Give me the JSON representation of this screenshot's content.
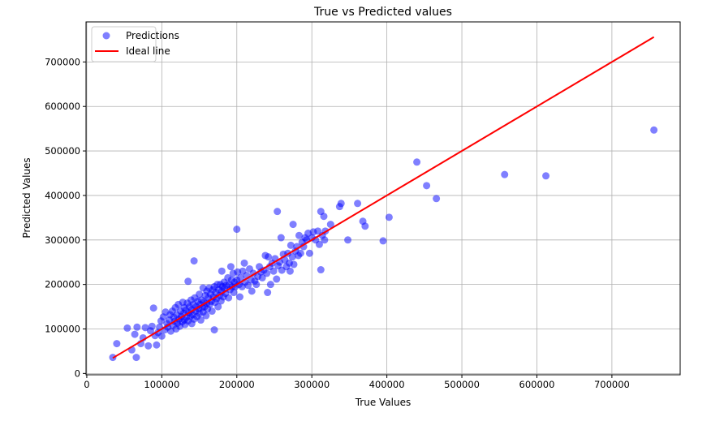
{
  "chart_data": {
    "type": "scatter",
    "title": "True vs Predicted values",
    "xlabel": "True Values",
    "ylabel": "Predicted Values",
    "xlim": [
      -1000,
      791000
    ],
    "ylim": [
      -3000,
      790000
    ],
    "xticks": [
      0,
      100000,
      200000,
      300000,
      400000,
      500000,
      600000,
      700000
    ],
    "yticks": [
      0,
      100000,
      200000,
      300000,
      400000,
      500000,
      600000,
      700000
    ],
    "xtick_labels": [
      "0",
      "100000",
      "200000",
      "300000",
      "400000",
      "500000",
      "600000",
      "700000"
    ],
    "ytick_labels": [
      "0",
      "100000",
      "200000",
      "300000",
      "400000",
      "500000",
      "600000",
      "700000"
    ],
    "grid": true,
    "legend_position": "top-left",
    "colors": {
      "points": "#0000ff",
      "ideal_line": "#ff0000"
    },
    "series": [
      {
        "name": "Predictions",
        "type": "scatter",
        "points": [
          [
            34700,
            36000
          ],
          [
            40000,
            67000
          ],
          [
            66000,
            36000
          ],
          [
            54000,
            102000
          ],
          [
            60000,
            53000
          ],
          [
            64000,
            88000
          ],
          [
            67000,
            104000
          ],
          [
            72000,
            67000
          ],
          [
            75000,
            80000
          ],
          [
            78000,
            103000
          ],
          [
            82000,
            62000
          ],
          [
            85000,
            96000
          ],
          [
            87000,
            106000
          ],
          [
            89000,
            147000
          ],
          [
            91000,
            85000
          ],
          [
            93000,
            64000
          ],
          [
            95000,
            92000
          ],
          [
            97000,
            104000
          ],
          [
            99000,
            118000
          ],
          [
            100000,
            84000
          ],
          [
            102000,
            127000
          ],
          [
            104000,
            98000
          ],
          [
            105000,
            138000
          ],
          [
            107000,
            112000
          ],
          [
            108000,
            104000
          ],
          [
            110000,
            120000
          ],
          [
            111000,
            132000
          ],
          [
            112000,
            95000
          ],
          [
            114000,
            140000
          ],
          [
            115000,
            108000
          ],
          [
            116000,
            126000
          ],
          [
            117000,
            117000
          ],
          [
            118000,
            148000
          ],
          [
            119000,
            100000
          ],
          [
            120000,
            132000
          ],
          [
            121000,
            113000
          ],
          [
            122000,
            155000
          ],
          [
            123000,
            122000
          ],
          [
            124000,
            106000
          ],
          [
            125000,
            140000
          ],
          [
            126000,
            128000
          ],
          [
            127000,
            116000
          ],
          [
            128000,
            160000
          ],
          [
            129000,
            135000
          ],
          [
            130000,
            120000
          ],
          [
            130000,
            148000
          ],
          [
            131000,
            110000
          ],
          [
            132000,
            142000
          ],
          [
            133000,
            126000
          ],
          [
            134000,
            158000
          ],
          [
            135000,
            207000
          ],
          [
            135000,
            118000
          ],
          [
            136000,
            136000
          ],
          [
            137000,
            150000
          ],
          [
            138000,
            128000
          ],
          [
            139000,
            165000
          ],
          [
            140000,
            112000
          ],
          [
            140000,
            143000
          ],
          [
            141000,
            132000
          ],
          [
            142000,
            155000
          ],
          [
            143000,
            253000
          ],
          [
            143000,
            122000
          ],
          [
            144000,
            170000
          ],
          [
            145000,
            140000
          ],
          [
            146000,
            150000
          ],
          [
            147000,
            128000
          ],
          [
            148000,
            162000
          ],
          [
            149000,
            145000
          ],
          [
            150000,
            135000
          ],
          [
            150000,
            178000
          ],
          [
            151000,
            155000
          ],
          [
            152000,
            120000
          ],
          [
            153000,
            165000
          ],
          [
            154000,
            148000
          ],
          [
            155000,
            192000
          ],
          [
            155000,
            138000
          ],
          [
            156000,
            160000
          ],
          [
            157000,
            150000
          ],
          [
            158000,
            175000
          ],
          [
            159000,
            130000
          ],
          [
            160000,
            185000
          ],
          [
            160000,
            158000
          ],
          [
            161000,
            145000
          ],
          [
            162000,
            170000
          ],
          [
            163000,
            192000
          ],
          [
            164000,
            155000
          ],
          [
            165000,
            178000
          ],
          [
            166000,
            162000
          ],
          [
            167000,
            140000
          ],
          [
            168000,
            188000
          ],
          [
            169000,
            172000
          ],
          [
            170000,
            98000
          ],
          [
            170000,
            195000
          ],
          [
            171000,
            160000
          ],
          [
            172000,
            182000
          ],
          [
            173000,
            168000
          ],
          [
            174000,
            200000
          ],
          [
            175000,
            150000
          ],
          [
            176000,
            188000
          ],
          [
            177000,
            175000
          ],
          [
            178000,
            200000
          ],
          [
            179000,
            163000
          ],
          [
            180000,
            230000
          ],
          [
            180000,
            185000
          ],
          [
            181000,
            195000
          ],
          [
            182000,
            172000
          ],
          [
            183000,
            205000
          ],
          [
            184000,
            190000
          ],
          [
            185000,
            180000
          ],
          [
            186000,
            198000
          ],
          [
            188000,
            215000
          ],
          [
            189000,
            170000
          ],
          [
            190000,
            200000
          ],
          [
            191000,
            188000
          ],
          [
            192000,
            240000
          ],
          [
            193000,
            210000
          ],
          [
            194000,
            195000
          ],
          [
            195000,
            225000
          ],
          [
            196000,
            182000
          ],
          [
            197000,
            205000
          ],
          [
            198000,
            195000
          ],
          [
            200000,
            324000
          ],
          [
            200000,
            210000
          ],
          [
            201000,
            228000
          ],
          [
            203000,
            200000
          ],
          [
            204000,
            172000
          ],
          [
            205000,
            215000
          ],
          [
            207000,
            195000
          ],
          [
            208000,
            230000
          ],
          [
            210000,
            248000
          ],
          [
            211000,
            205000
          ],
          [
            213000,
            220000
          ],
          [
            215000,
            198000
          ],
          [
            217000,
            235000
          ],
          [
            219000,
            210000
          ],
          [
            220000,
            185000
          ],
          [
            222000,
            225000
          ],
          [
            224000,
            208000
          ],
          [
            226000,
            200000
          ],
          [
            228000,
            218000
          ],
          [
            230000,
            240000
          ],
          [
            232000,
            228000
          ],
          [
            234000,
            215000
          ],
          [
            236000,
            232000
          ],
          [
            238000,
            265000
          ],
          [
            240000,
            225000
          ],
          [
            241000,
            182000
          ],
          [
            242000,
            262000
          ],
          [
            244000,
            240000
          ],
          [
            245000,
            200000
          ],
          [
            247000,
            248000
          ],
          [
            249000,
            230000
          ],
          [
            251000,
            258000
          ],
          [
            253000,
            212000
          ],
          [
            254000,
            364000
          ],
          [
            255000,
            242000
          ],
          [
            257000,
            250000
          ],
          [
            259000,
            305000
          ],
          [
            260000,
            232000
          ],
          [
            262000,
            268000
          ],
          [
            264000,
            255000
          ],
          [
            266000,
            240000
          ],
          [
            268000,
            270000
          ],
          [
            270000,
            248000
          ],
          [
            271000,
            230000
          ],
          [
            272000,
            288000
          ],
          [
            274000,
            262000
          ],
          [
            275000,
            335000
          ],
          [
            276000,
            245000
          ],
          [
            278000,
            275000
          ],
          [
            280000,
            285000
          ],
          [
            282000,
            265000
          ],
          [
            283000,
            310000
          ],
          [
            285000,
            270000
          ],
          [
            287000,
            295000
          ],
          [
            289000,
            285000
          ],
          [
            291000,
            305000
          ],
          [
            293000,
            300000
          ],
          [
            295000,
            315000
          ],
          [
            297000,
            270000
          ],
          [
            300000,
            305000
          ],
          [
            302000,
            318000
          ],
          [
            305000,
            300000
          ],
          [
            308000,
            320000
          ],
          [
            310000,
            290000
          ],
          [
            312000,
            364000
          ],
          [
            312000,
            233000
          ],
          [
            314000,
            310000
          ],
          [
            316000,
            353000
          ],
          [
            317000,
            300000
          ],
          [
            318000,
            320000
          ],
          [
            325000,
            335000
          ],
          [
            337000,
            375000
          ],
          [
            339000,
            382000
          ],
          [
            348000,
            300000
          ],
          [
            361000,
            382000
          ],
          [
            368000,
            342000
          ],
          [
            371000,
            331000
          ],
          [
            395000,
            298000
          ],
          [
            403000,
            351000
          ],
          [
            440000,
            475000
          ],
          [
            453000,
            422000
          ],
          [
            466000,
            393000
          ],
          [
            557000,
            447000
          ],
          [
            612000,
            444000
          ],
          [
            756000,
            547000
          ]
        ]
      },
      {
        "name": "Ideal line",
        "type": "line",
        "points": [
          [
            34700,
            34700
          ],
          [
            756000,
            756000
          ]
        ]
      }
    ]
  }
}
